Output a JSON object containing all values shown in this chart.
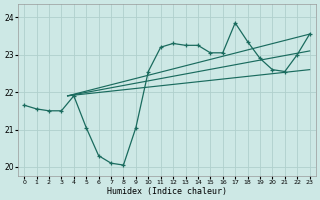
{
  "xlabel": "Humidex (Indice chaleur)",
  "bg_color": "#cde8e5",
  "line_color": "#1a6b5e",
  "grid_color": "#b0d0cc",
  "x_data": [
    0,
    1,
    2,
    3,
    4,
    5,
    6,
    7,
    8,
    9,
    10,
    11,
    12,
    13,
    14,
    15,
    16,
    17,
    18,
    19,
    20,
    21,
    22,
    23
  ],
  "y_main": [
    21.65,
    21.55,
    21.5,
    21.5,
    21.9,
    21.05,
    20.3,
    20.1,
    20.05,
    21.05,
    22.55,
    23.2,
    23.3,
    23.25,
    23.25,
    23.05,
    23.05,
    23.85,
    23.35,
    22.9,
    22.6,
    22.55,
    23.0,
    23.55
  ],
  "line1_x": [
    3.5,
    23
  ],
  "line1_y": [
    21.9,
    23.55
  ],
  "line2_x": [
    3.5,
    23
  ],
  "line2_y": [
    21.9,
    23.1
  ],
  "line3_x": [
    3.5,
    23
  ],
  "line3_y": [
    21.9,
    22.6
  ],
  "ylim": [
    19.75,
    24.35
  ],
  "xlim": [
    -0.5,
    23.5
  ],
  "yticks": [
    20,
    21,
    22,
    23,
    24
  ],
  "xticks": [
    0,
    1,
    2,
    3,
    4,
    5,
    6,
    7,
    8,
    9,
    10,
    11,
    12,
    13,
    14,
    15,
    16,
    17,
    18,
    19,
    20,
    21,
    22,
    23
  ]
}
